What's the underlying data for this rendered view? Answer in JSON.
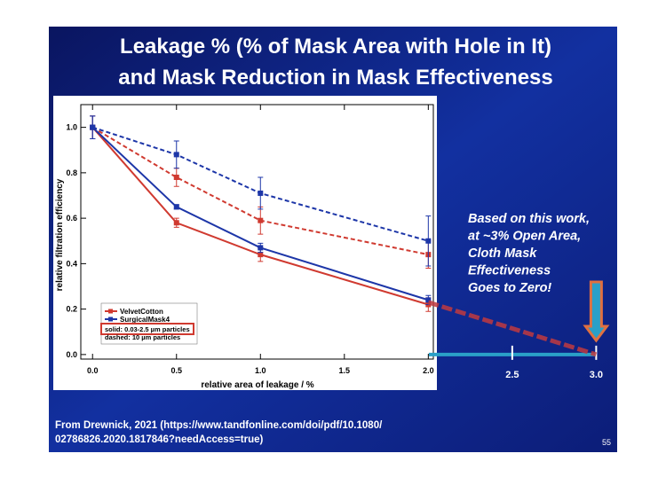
{
  "chart_data": {
    "type": "line",
    "title": [
      "Leakage % (% of Mask Area with Hole in It)",
      "and Mask Reduction in Mask Effectiveness"
    ],
    "x_label": "relative area of leakage / %",
    "y_label": "relative filtration efficiency",
    "x": [
      0,
      0.5,
      1,
      2
    ],
    "series": [
      {
        "name": "VelvetCotton",
        "color": "#d03a30",
        "values": [
          1.0,
          0.58,
          0.44,
          0.22
        ],
        "errors": [
          0.05,
          0.02,
          0.03,
          0.03
        ],
        "dashed_values": [
          1.0,
          0.78,
          0.59,
          0.44
        ],
        "dashed_errors": [
          0.05,
          0.04,
          0.06,
          0.06
        ]
      },
      {
        "name": "SurgicalMask4",
        "color": "#1d36a8",
        "values": [
          1.0,
          0.65,
          0.47,
          0.24
        ],
        "errors": [
          0.05,
          0.01,
          0.02,
          0.02
        ],
        "dashed_values": [
          1.0,
          0.88,
          0.71,
          0.5
        ],
        "dashed_errors": [
          0.05,
          0.06,
          0.07,
          0.11
        ]
      }
    ],
    "line_styles": [
      "solid: 0.03-2.5 µm particles",
      "dashed: 10 µm particles"
    ],
    "xlim": [
      -0.07,
      2.03
    ],
    "ylim": [
      -0.02,
      1.1
    ],
    "xticks": [
      {
        "value": 0,
        "label": "0.0"
      },
      0.5,
      {
        "value": 1,
        "label": "1.0"
      },
      1.5,
      {
        "value": 2,
        "label": "2.0"
      }
    ],
    "yticks": [
      {
        "value": 0,
        "label": "0.0"
      },
      0.2,
      0.4,
      0.6,
      0.8,
      {
        "value": 1,
        "label": "1.0"
      }
    ],
    "extrapolation": {
      "x": [
        2,
        3
      ],
      "values": [
        0.23,
        0
      ]
    },
    "extended_xticks": [
      2.5,
      {
        "value": 3,
        "label": "3.0"
      }
    ],
    "annotation": [
      "Based on this work,",
      "at ~3% Open Area,",
      "Cloth Mask",
      "Effectiveness",
      "Goes to Zero!"
    ],
    "source": [
      "From Drewnick, 2021 (https://www.tandfonline.com/doi/pdf/10.1080/",
      "02786826.2020.1817846?needAccess=true)"
    ],
    "page_number": "55"
  }
}
